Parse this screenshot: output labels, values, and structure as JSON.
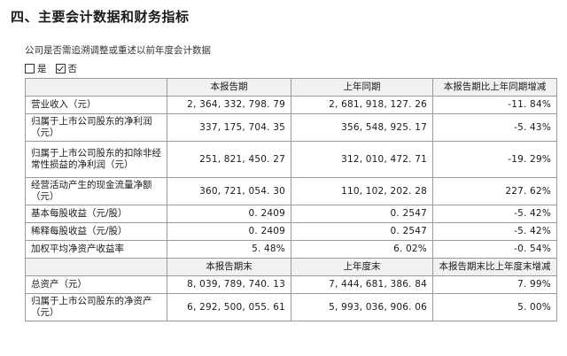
{
  "section_title": "四、主要会计数据和财务指标",
  "restatement_question": "公司是否需追溯调整或重述以前年度会计数据",
  "options": {
    "yes": "是",
    "no": "否",
    "selected": "no"
  },
  "table1": {
    "headers": [
      "",
      "本报告期",
      "上年同期",
      "本报告期比上年同期增减"
    ],
    "rows": [
      {
        "label": "营业收入（元）",
        "current": "2, 364, 332, 798. 79",
        "prior": "2, 681, 918, 127. 26",
        "change": "-11. 84%"
      },
      {
        "label": "归属于上市公司股东的净利润（元）",
        "current": "337, 175, 704. 35",
        "prior": "356, 548, 925. 17",
        "change": "-5. 43%"
      },
      {
        "label": "归属于上市公司股东的扣除非经常性损益的净利润（元）",
        "current": "251, 821, 450. 27",
        "prior": "312, 010, 472. 71",
        "change": "-19. 29%"
      },
      {
        "label": "经营活动产生的现金流量净额（元）",
        "current": "360, 721, 054. 30",
        "prior": "110, 102, 202. 28",
        "change": "227. 62%"
      },
      {
        "label": "基本每股收益（元/股）",
        "current": "0. 2409",
        "prior": "0. 2547",
        "change": "-5. 42%"
      },
      {
        "label": "稀释每股收益（元/股）",
        "current": "0. 2409",
        "prior": "0. 2547",
        "change": "-5. 42%"
      },
      {
        "label": "加权平均净资产收益率",
        "current": "5. 48%",
        "prior": "6. 02%",
        "change": "-0. 54%"
      }
    ]
  },
  "table2": {
    "headers": [
      "",
      "本报告期末",
      "上年度末",
      "本报告期末比上年度末增减"
    ],
    "rows": [
      {
        "label": "总资产（元）",
        "current": "8, 039, 789, 740. 13",
        "prior": "7, 444, 681, 386. 84",
        "change": "7. 99%"
      },
      {
        "label": "归属于上市公司股东的净资产（元）",
        "current": "6, 292, 500, 055. 61",
        "prior": "5, 993, 036, 906. 06",
        "change": "5. 00%"
      }
    ]
  }
}
